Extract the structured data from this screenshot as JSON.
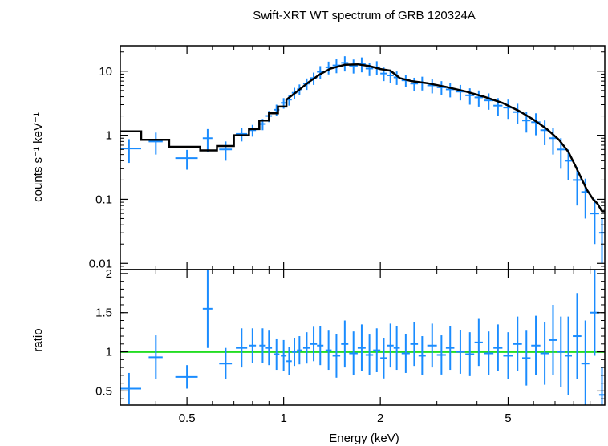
{
  "chart_data": [
    {
      "type": "scatter",
      "title": "Swift-XRT WT spectrum of GRB 120324A",
      "ylabel": "counts s⁻¹ keV⁻¹",
      "xlabel": "",
      "xscale": "log",
      "yscale": "log",
      "xlim": [
        0.31,
        10.0
      ],
      "ylim": [
        0.008,
        25
      ],
      "x_tick_labels": [
        "0.5",
        "1",
        "2",
        "5"
      ],
      "x_ticks": [
        0.5,
        1,
        2,
        5
      ],
      "y_tick_labels": [
        "0.01",
        "0.1",
        "1",
        "10"
      ],
      "y_ticks": [
        0.01,
        0.1,
        1,
        10
      ],
      "colors": {
        "data": "#1a8cff",
        "model": "#000000"
      },
      "series": [
        {
          "kind": "data",
          "x": [
            0.33,
            0.4,
            0.5,
            0.58,
            0.66,
            0.74,
            0.8,
            0.86,
            0.9,
            0.95,
            1.0,
            1.04,
            1.08,
            1.12,
            1.18,
            1.24,
            1.3,
            1.38,
            1.46,
            1.55,
            1.65,
            1.75,
            1.85,
            1.95,
            2.05,
            2.15,
            2.25,
            2.4,
            2.55,
            2.7,
            2.9,
            3.1,
            3.3,
            3.55,
            3.8,
            4.05,
            4.35,
            4.65,
            5.0,
            5.35,
            5.7,
            6.1,
            6.5,
            6.9,
            7.3,
            7.7,
            8.2,
            8.7,
            9.3,
            9.8
          ],
          "xerr": [
            0.03,
            0.02,
            0.04,
            0.02,
            0.03,
            0.03,
            0.02,
            0.02,
            0.02,
            0.02,
            0.02,
            0.02,
            0.02,
            0.02,
            0.03,
            0.03,
            0.03,
            0.03,
            0.04,
            0.04,
            0.05,
            0.05,
            0.05,
            0.05,
            0.05,
            0.05,
            0.05,
            0.07,
            0.07,
            0.07,
            0.1,
            0.1,
            0.1,
            0.12,
            0.12,
            0.12,
            0.15,
            0.15,
            0.17,
            0.17,
            0.17,
            0.2,
            0.2,
            0.2,
            0.2,
            0.2,
            0.25,
            0.25,
            0.3,
            0.2
          ],
          "y": [
            0.62,
            0.8,
            0.44,
            0.9,
            0.6,
            1.05,
            1.2,
            1.5,
            2.0,
            2.5,
            3.2,
            3.6,
            4.6,
            5.2,
            6.4,
            7.8,
            9.8,
            11.5,
            12.3,
            13.5,
            12.2,
            13.0,
            11.0,
            11.5,
            9.2,
            8.6,
            8.0,
            7.2,
            6.4,
            6.6,
            6.0,
            5.6,
            5.2,
            4.8,
            4.2,
            3.9,
            3.5,
            2.9,
            2.7,
            2.3,
            1.7,
            1.6,
            1.2,
            0.9,
            0.6,
            0.4,
            0.2,
            0.13,
            0.06,
            0.03
          ],
          "yerr": [
            0.25,
            0.3,
            0.15,
            0.35,
            0.2,
            0.25,
            0.25,
            0.3,
            0.4,
            0.5,
            0.6,
            0.7,
            0.9,
            1.0,
            1.3,
            1.7,
            2.2,
            2.6,
            3.0,
            3.6,
            3.0,
            3.4,
            2.6,
            2.8,
            2.2,
            2.0,
            1.9,
            1.6,
            1.5,
            1.6,
            1.5,
            1.4,
            1.3,
            1.3,
            1.2,
            1.1,
            1.0,
            0.9,
            0.9,
            0.8,
            0.6,
            0.6,
            0.5,
            0.4,
            0.3,
            0.2,
            0.12,
            0.08,
            0.04,
            0.02
          ]
        },
        {
          "kind": "model",
          "x": [
            0.31,
            0.36,
            0.36,
            0.44,
            0.44,
            0.55,
            0.55,
            0.62,
            0.62,
            0.7,
            0.7,
            0.78,
            0.78,
            0.84,
            0.84,
            0.9,
            0.9,
            0.96,
            0.96,
            1.02,
            1.02,
            1.1,
            1.2,
            1.3,
            1.4,
            1.55,
            1.7,
            1.85,
            2.0,
            2.15,
            2.3,
            2.5,
            2.8,
            3.2,
            3.7,
            4.2,
            4.8,
            5.4,
            6.0,
            6.6,
            7.2,
            7.7,
            8.1,
            8.5,
            8.8,
            9.2,
            9.5,
            9.8,
            10.0
          ],
          "y": [
            1.15,
            1.15,
            0.85,
            0.85,
            0.66,
            0.66,
            0.58,
            0.58,
            0.68,
            0.68,
            1.0,
            1.0,
            1.25,
            1.25,
            1.7,
            1.7,
            2.2,
            2.2,
            2.8,
            2.8,
            3.6,
            4.8,
            6.8,
            9.0,
            11.0,
            12.6,
            12.8,
            12.0,
            10.8,
            10.2,
            7.8,
            7.0,
            6.5,
            5.7,
            4.8,
            4.0,
            3.2,
            2.4,
            1.75,
            1.25,
            0.85,
            0.55,
            0.33,
            0.2,
            0.14,
            0.1,
            0.085,
            0.065,
            0.065
          ]
        }
      ]
    },
    {
      "type": "scatter",
      "ylabel": "ratio",
      "xlabel": "Energy (keV)",
      "xscale": "log",
      "xlim": [
        0.31,
        10.0
      ],
      "ylim": [
        0.32,
        2.05
      ],
      "x_tick_labels": [
        "0.5",
        "1",
        "2",
        "5"
      ],
      "x_ticks": [
        0.5,
        1,
        2,
        5
      ],
      "y_tick_labels": [
        "0.5",
        "1",
        "1.5",
        "2"
      ],
      "y_ticks": [
        0.5,
        1.0,
        1.5,
        2.0
      ],
      "reference_line": {
        "y": 1.0,
        "color": "#22dd22"
      },
      "colors": {
        "data": "#1a8cff"
      },
      "series": [
        {
          "kind": "data",
          "x": [
            0.33,
            0.4,
            0.5,
            0.58,
            0.66,
            0.74,
            0.8,
            0.86,
            0.9,
            0.95,
            1.0,
            1.04,
            1.08,
            1.12,
            1.18,
            1.24,
            1.3,
            1.38,
            1.46,
            1.55,
            1.65,
            1.75,
            1.85,
            1.95,
            2.05,
            2.15,
            2.25,
            2.4,
            2.55,
            2.7,
            2.9,
            3.1,
            3.3,
            3.55,
            3.8,
            4.05,
            4.35,
            4.65,
            5.0,
            5.35,
            5.7,
            6.1,
            6.5,
            6.9,
            7.3,
            7.7,
            8.2,
            8.7,
            9.3,
            9.8
          ],
          "xerr": [
            0.03,
            0.02,
            0.04,
            0.02,
            0.03,
            0.03,
            0.02,
            0.02,
            0.02,
            0.02,
            0.02,
            0.02,
            0.02,
            0.02,
            0.03,
            0.03,
            0.03,
            0.03,
            0.04,
            0.04,
            0.05,
            0.05,
            0.05,
            0.05,
            0.05,
            0.05,
            0.05,
            0.07,
            0.07,
            0.07,
            0.1,
            0.1,
            0.1,
            0.12,
            0.12,
            0.12,
            0.15,
            0.15,
            0.17,
            0.17,
            0.17,
            0.2,
            0.2,
            0.2,
            0.2,
            0.2,
            0.25,
            0.25,
            0.3,
            0.2
          ],
          "y": [
            0.53,
            0.93,
            0.68,
            1.55,
            0.85,
            1.05,
            1.08,
            1.08,
            1.05,
            0.97,
            0.95,
            0.88,
            1.0,
            1.02,
            1.05,
            1.1,
            1.08,
            1.02,
            0.95,
            1.1,
            0.98,
            1.05,
            0.96,
            1.02,
            0.92,
            1.08,
            1.05,
            0.98,
            1.1,
            0.95,
            1.08,
            0.96,
            1.05,
            1.0,
            0.97,
            1.12,
            0.98,
            1.05,
            0.95,
            1.1,
            0.92,
            1.08,
            0.98,
            1.15,
            1.0,
            0.95,
            1.2,
            0.85,
            1.5,
            0.45
          ],
          "yerr": [
            0.2,
            0.28,
            0.15,
            0.5,
            0.2,
            0.25,
            0.22,
            0.22,
            0.22,
            0.2,
            0.2,
            0.18,
            0.18,
            0.18,
            0.2,
            0.22,
            0.25,
            0.25,
            0.28,
            0.3,
            0.28,
            0.3,
            0.26,
            0.28,
            0.26,
            0.28,
            0.28,
            0.25,
            0.28,
            0.25,
            0.28,
            0.25,
            0.28,
            0.28,
            0.28,
            0.3,
            0.28,
            0.3,
            0.3,
            0.35,
            0.35,
            0.38,
            0.4,
            0.45,
            0.45,
            0.5,
            0.55,
            0.55,
            0.55,
            0.35
          ]
        }
      ]
    }
  ]
}
